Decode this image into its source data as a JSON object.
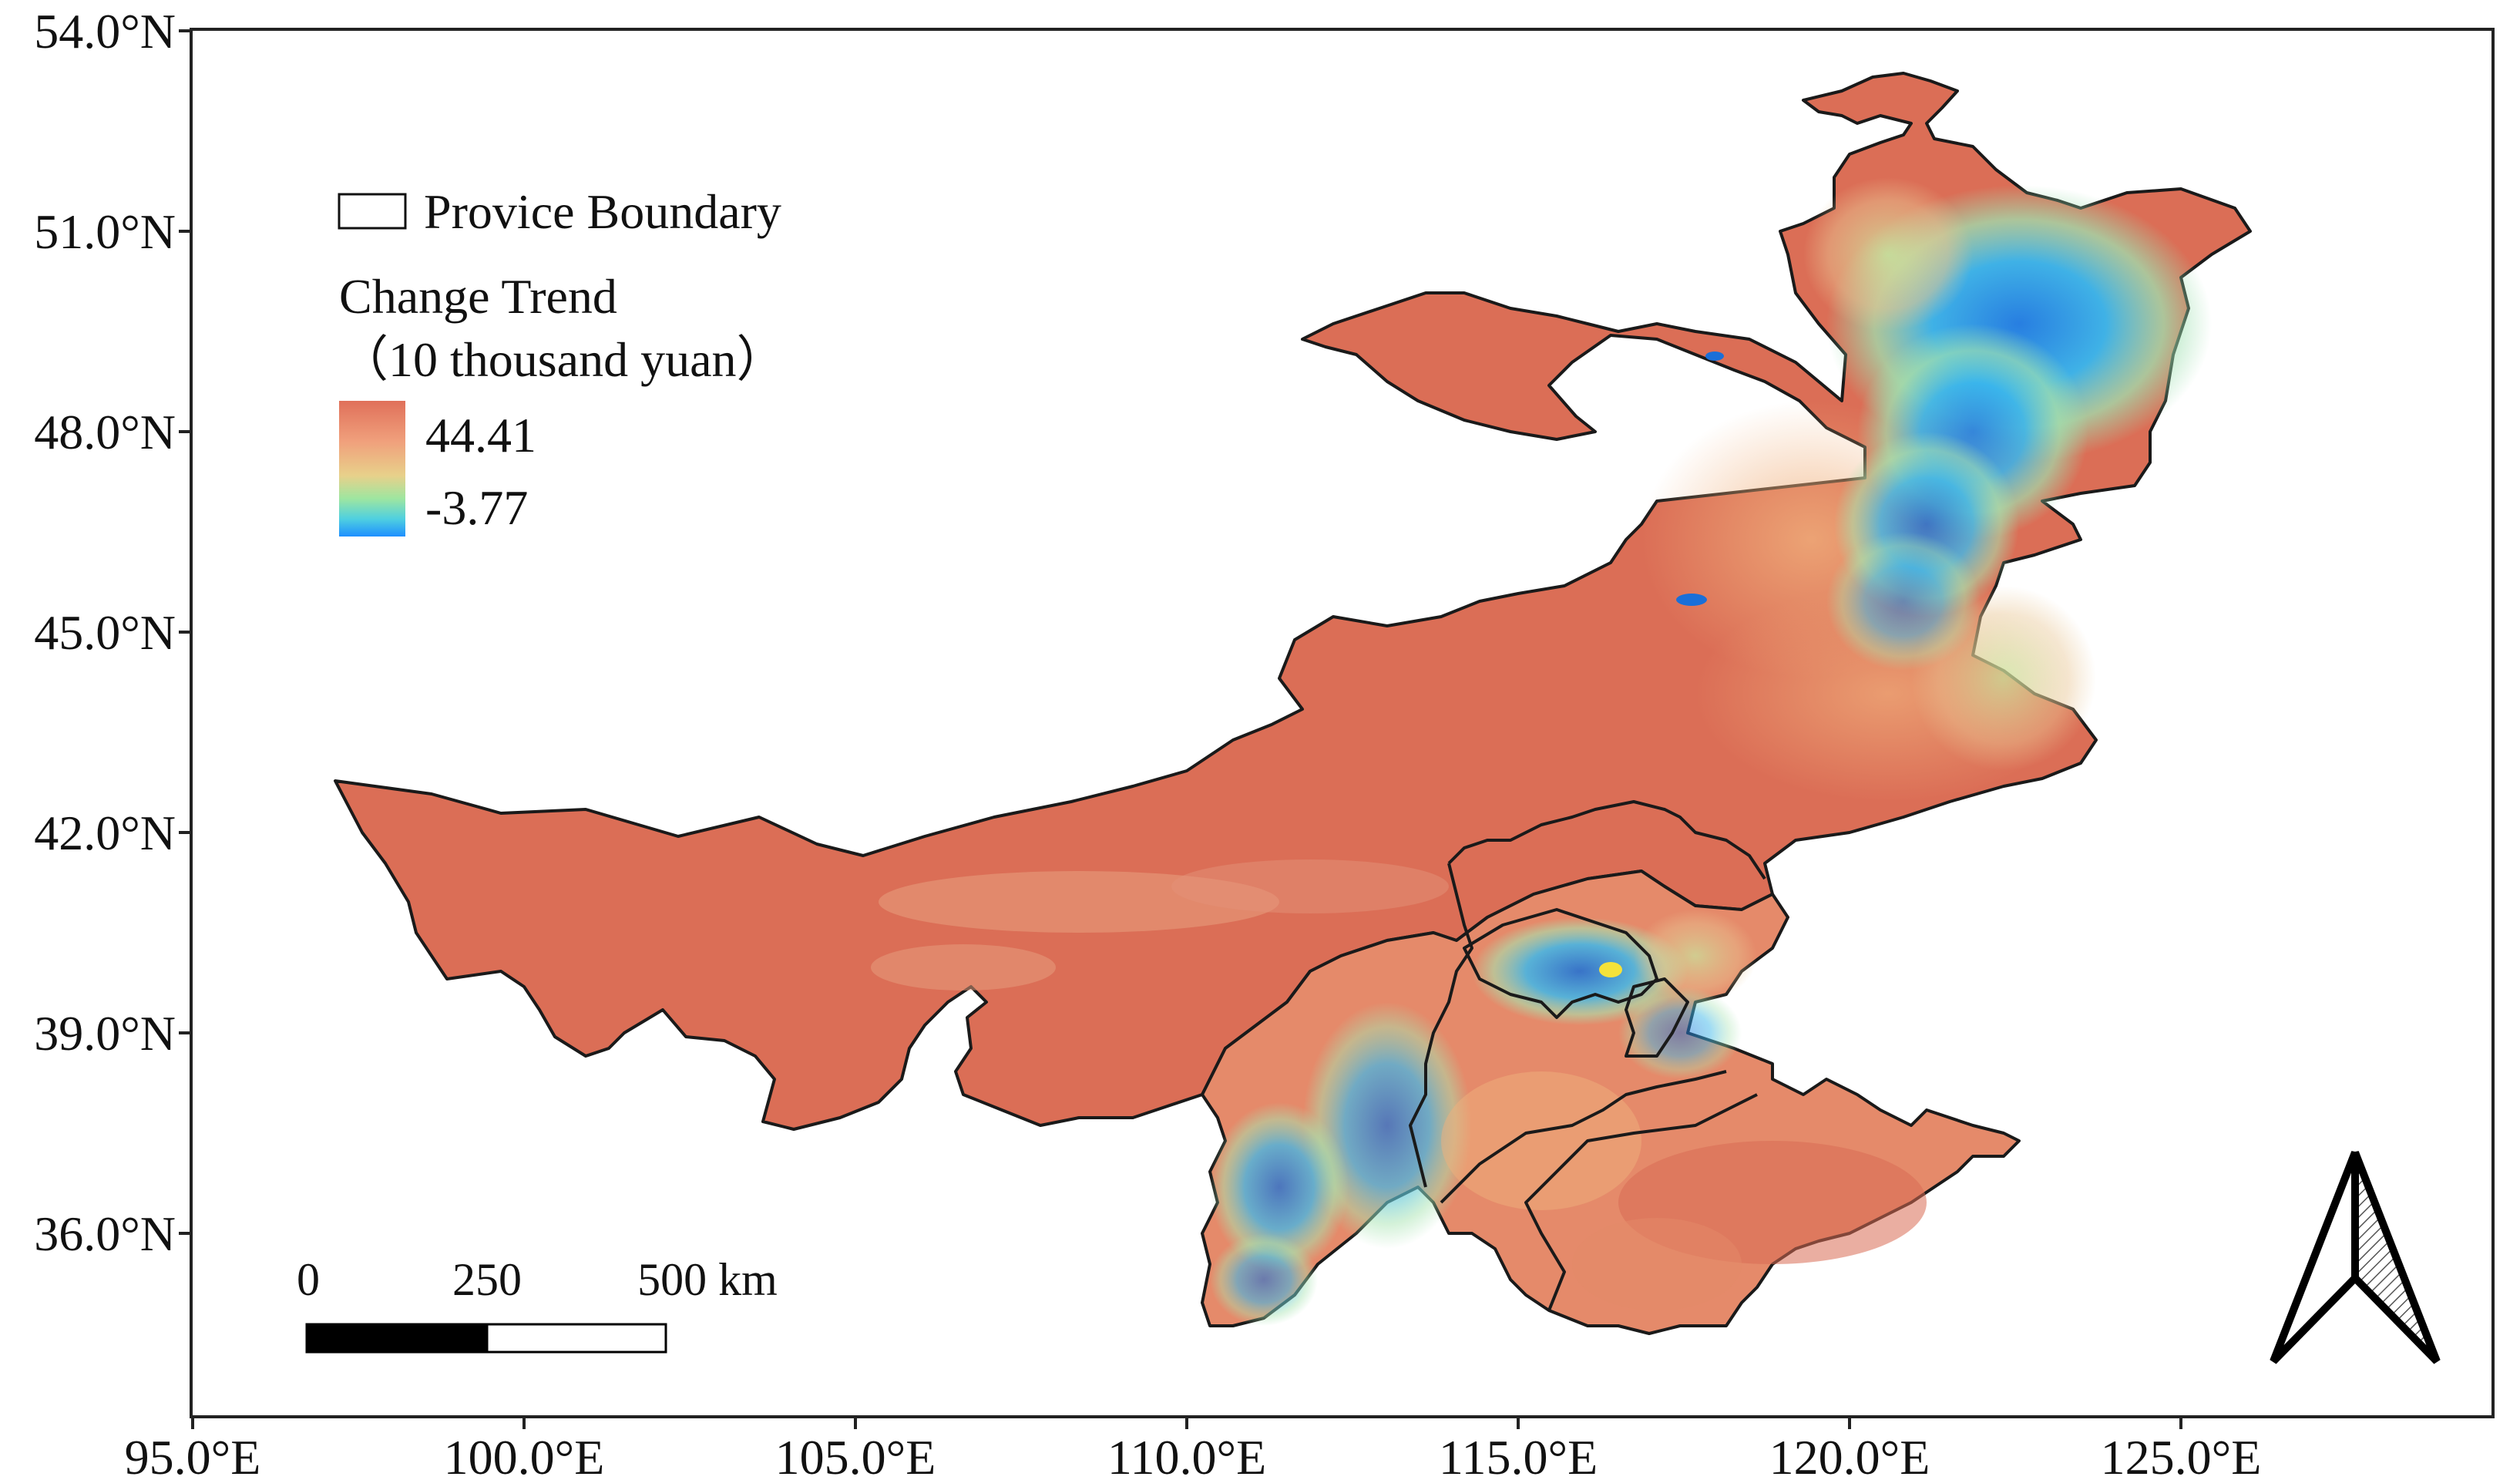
{
  "map": {
    "lat_labels": [
      "54.0°N",
      "51.0°N",
      "48.0°N",
      "45.0°N",
      "42.0°N",
      "39.0°N",
      "36.0°N"
    ],
    "lon_labels": [
      "95.0°E",
      "100.0°E",
      "105.0°E",
      "110.0°E",
      "115.0°E",
      "120.0°E",
      "125.0°E"
    ]
  },
  "legend": {
    "boundary_label": "Provice Boundary",
    "title_line1": "Change Trend",
    "title_line2": "（10 thousand yuan）",
    "max_label": "44.41",
    "min_label": "-3.77",
    "ramp_colors": [
      "#e07a5f",
      "#f0a07c",
      "#f2c27f",
      "#9ee6a0",
      "#4fd0e0",
      "#1e90ff"
    ]
  },
  "scale_bar": {
    "labels": [
      "0",
      "250",
      "500 km"
    ]
  },
  "colors": {
    "high": "#dc6e55",
    "mid_high": "#ec9a78",
    "mid": "#f0bb80",
    "mid_low": "#8fdcb0",
    "low": "#2aa8ee",
    "lowest": "#1a6fd8",
    "border": "#1a1a1a"
  }
}
